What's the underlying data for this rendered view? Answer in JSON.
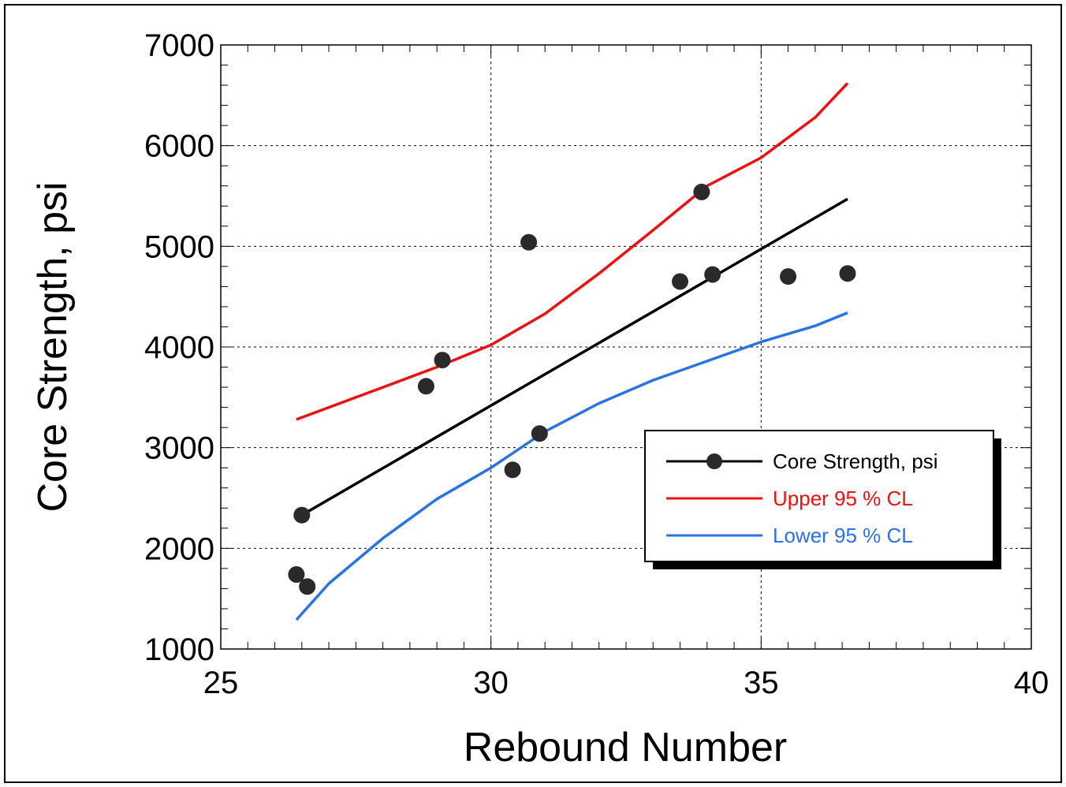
{
  "chart_data": {
    "type": "scatter",
    "title": "",
    "xlabel": "Rebound Number",
    "ylabel": "Core Strength, psi",
    "xlim": [
      25,
      40
    ],
    "ylim": [
      1000,
      7000
    ],
    "xticks": [
      "25",
      "30",
      "35",
      "40"
    ],
    "yticks": [
      "1000",
      "2000",
      "3000",
      "4000",
      "5000",
      "6000",
      "7000"
    ],
    "grid": true,
    "legend_position": "lower-right",
    "series": [
      {
        "name": "Core Strength, psi",
        "kind": "points+fit",
        "color": "#000000",
        "marker_color": "#2a2a2a",
        "points": [
          {
            "x": 26.4,
            "y": 1740
          },
          {
            "x": 26.5,
            "y": 2330
          },
          {
            "x": 26.6,
            "y": 1620
          },
          {
            "x": 28.8,
            "y": 3610
          },
          {
            "x": 29.1,
            "y": 3870
          },
          {
            "x": 30.4,
            "y": 2780
          },
          {
            "x": 30.7,
            "y": 5040
          },
          {
            "x": 30.9,
            "y": 3140
          },
          {
            "x": 33.5,
            "y": 4650
          },
          {
            "x": 33.9,
            "y": 5540
          },
          {
            "x": 34.1,
            "y": 4720
          },
          {
            "x": 35.5,
            "y": 4700
          },
          {
            "x": 36.6,
            "y": 4730
          }
        ],
        "fit": [
          {
            "x": 26.5,
            "y": 2330
          },
          {
            "x": 36.6,
            "y": 5470
          }
        ]
      },
      {
        "name": "Upper 95 % CL",
        "kind": "line",
        "color": "#ee1111",
        "points": [
          {
            "x": 26.4,
            "y": 3280
          },
          {
            "x": 27.0,
            "y": 3400
          },
          {
            "x": 28.0,
            "y": 3600
          },
          {
            "x": 29.0,
            "y": 3800
          },
          {
            "x": 30.0,
            "y": 4020
          },
          {
            "x": 31.0,
            "y": 4330
          },
          {
            "x": 32.0,
            "y": 4730
          },
          {
            "x": 33.0,
            "y": 5160
          },
          {
            "x": 34.0,
            "y": 5600
          },
          {
            "x": 35.0,
            "y": 5880
          },
          {
            "x": 36.0,
            "y": 6280
          },
          {
            "x": 36.6,
            "y": 6620
          }
        ]
      },
      {
        "name": "Lower 95 % CL",
        "kind": "line",
        "color": "#2a73e6",
        "points": [
          {
            "x": 26.4,
            "y": 1290
          },
          {
            "x": 27.0,
            "y": 1650
          },
          {
            "x": 28.0,
            "y": 2100
          },
          {
            "x": 29.0,
            "y": 2490
          },
          {
            "x": 30.0,
            "y": 2800
          },
          {
            "x": 31.0,
            "y": 3160
          },
          {
            "x": 32.0,
            "y": 3440
          },
          {
            "x": 33.0,
            "y": 3670
          },
          {
            "x": 34.0,
            "y": 3860
          },
          {
            "x": 35.0,
            "y": 4050
          },
          {
            "x": 36.0,
            "y": 4210
          },
          {
            "x": 36.6,
            "y": 4340
          }
        ]
      }
    ]
  }
}
